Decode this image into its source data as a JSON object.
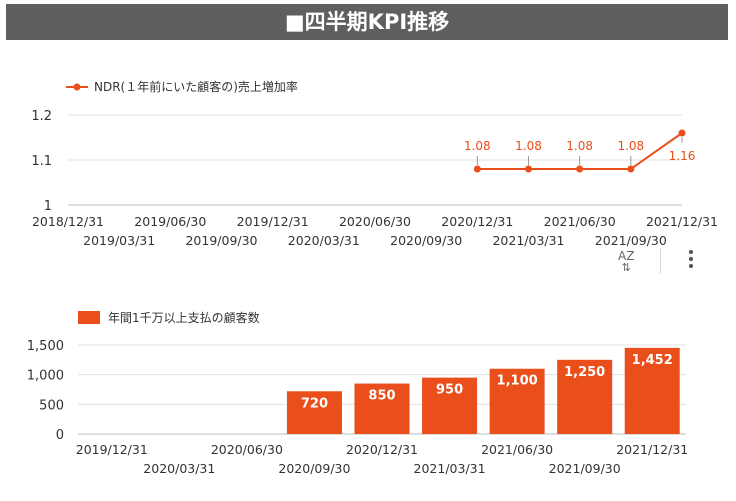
{
  "header": {
    "title": "■四半期KPI推移"
  },
  "toolbar": {
    "sort_label": "AZ",
    "sort_arrow": "⇅"
  },
  "colors": {
    "accent": "#e94e1b",
    "grid": "#e0e0e0",
    "header_bg": "#5f5f5f"
  },
  "chart_data": [
    {
      "type": "line",
      "legend": "NDR(１年前にいた顧客の)売上増加率",
      "legend_position": "top-left",
      "grid": true,
      "x": [
        "2018/12/31",
        "2019/03/31",
        "2019/06/30",
        "2019/09/30",
        "2019/12/31",
        "2020/03/31",
        "2020/06/30",
        "2020/09/30",
        "2020/12/31",
        "2021/03/31",
        "2021/06/30",
        "2021/09/30",
        "2021/12/31"
      ],
      "values": [
        null,
        null,
        null,
        null,
        null,
        null,
        null,
        null,
        1.08,
        1.08,
        1.08,
        1.08,
        1.16
      ],
      "data_labels": [
        "",
        "",
        "",
        "",
        "",
        "",
        "",
        "",
        "1.08",
        "1.08",
        "1.08",
        "1.08",
        "1.16"
      ],
      "yticks": [
        "1",
        "1.1",
        "1.2"
      ],
      "ylim": [
        1,
        1.2
      ]
    },
    {
      "type": "bar",
      "legend": "年間1千万以上支払の顧客数",
      "legend_position": "top-left",
      "grid": true,
      "categories": [
        "2019/12/31",
        "2020/03/31",
        "2020/06/30",
        "2020/09/30",
        "2020/12/31",
        "2021/03/31",
        "2021/06/30",
        "2021/09/30",
        "2021/12/31"
      ],
      "values": [
        null,
        null,
        null,
        720,
        850,
        950,
        1100,
        1250,
        1452
      ],
      "data_labels": [
        "",
        "",
        "",
        "720",
        "850",
        "950",
        "1,100",
        "1,250",
        "1,452"
      ],
      "yticks": [
        "0",
        "500",
        "1,000",
        "1,500"
      ],
      "ylim": [
        0,
        1500
      ]
    }
  ]
}
